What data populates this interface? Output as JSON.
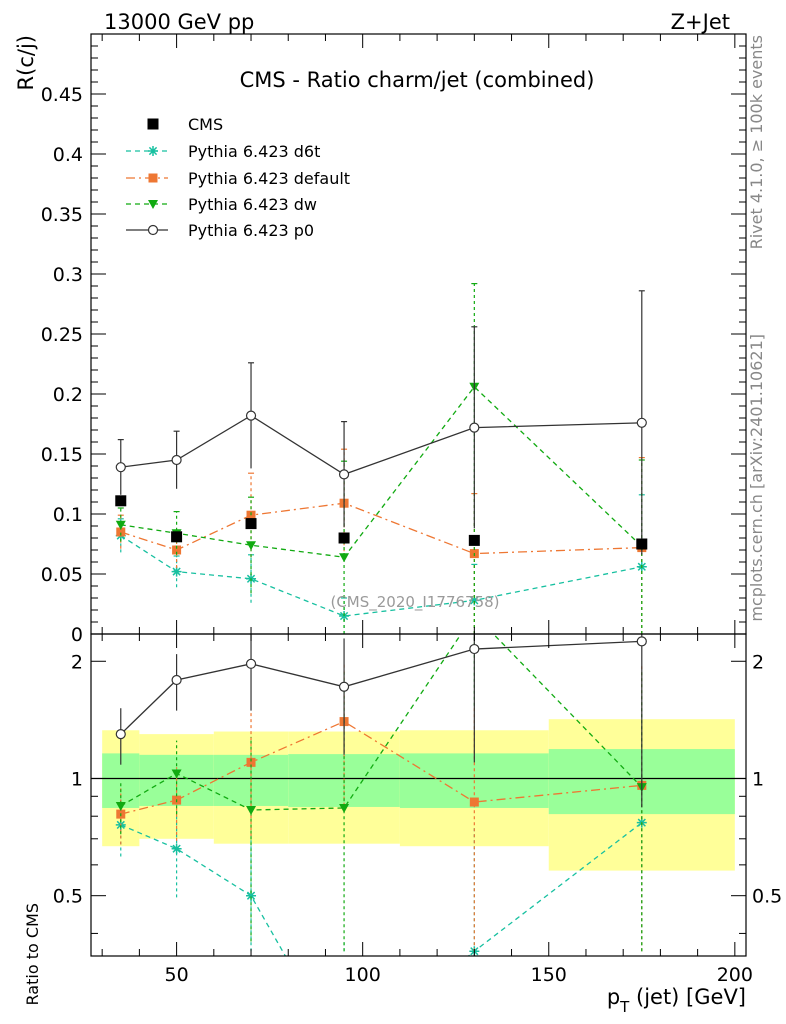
{
  "header": {
    "left": "13000 GeV pp",
    "right": "Z+Jet"
  },
  "side_labels": {
    "rivet": "Rivet 4.1.0, ≥ 100k events",
    "mcplots": "mcplots.cern.ch [arXiv:2401.10621]"
  },
  "chart_data": {
    "type": "scatter",
    "title": "CMS - Ratio charm/jet (combined)",
    "watermark": "(CMS_2020_I1776758)",
    "xlabel": "p_T (jet) [GeV]",
    "xlabel_parts": {
      "main": "p",
      "sub": "T",
      "rest": " (jet) [GeV]"
    },
    "ylabel": "R(c/j)",
    "ratio_ylabel": "Ratio to CMS",
    "xlim": [
      27,
      203
    ],
    "ylim": [
      0,
      0.5
    ],
    "ratio_ylim": [
      0.35,
      2.35
    ],
    "x_ticks": [
      "50",
      "100",
      "150",
      "200"
    ],
    "y_ticks": [
      "0",
      "0.05",
      "0.1",
      "0.15",
      "0.2",
      "0.25",
      "0.3",
      "0.35",
      "0.4",
      "0.45"
    ],
    "ratio_ticks": [
      "0.5",
      "1",
      "2"
    ],
    "bins": [
      [
        30,
        40
      ],
      [
        40,
        60
      ],
      [
        60,
        80
      ],
      [
        80,
        110
      ],
      [
        110,
        150
      ],
      [
        150,
        200
      ]
    ],
    "x": [
      35,
      50,
      70,
      95,
      130,
      175
    ],
    "data": {
      "name": "CMS",
      "values": [
        0.111,
        0.081,
        0.092,
        0.08,
        0.078,
        0.075
      ],
      "band_inner": [
        0.16,
        0.15,
        0.15,
        0.155,
        0.16,
        0.19
      ],
      "band_outer": [
        0.33,
        0.3,
        0.32,
        0.32,
        0.33,
        0.42
      ]
    },
    "series": [
      {
        "name": "Pythia 6.423 d6t",
        "color": "#17c0a0",
        "marker": "star",
        "dash": "5,4",
        "values": [
          0.082,
          0.052,
          0.046,
          0.015,
          0.028,
          0.056
        ],
        "err_lo": [
          0.014,
          0.013,
          0.02,
          0.015,
          0.028,
          0.056
        ],
        "err_hi": [
          0.014,
          0.013,
          0.02,
          0.015,
          0.03,
          0.06
        ],
        "ratio": [
          0.76,
          0.66,
          0.5,
          0.19,
          0.36,
          0.77
        ]
      },
      {
        "name": "Pythia 6.423 default",
        "color": "#ee7733",
        "marker": "square",
        "dash": "9,4,2,4",
        "values": [
          0.085,
          0.07,
          0.099,
          0.109,
          0.067,
          0.072
        ],
        "err_lo": [
          0.014,
          0.015,
          0.035,
          0.045,
          0.067,
          0.072
        ],
        "err_hi": [
          0.014,
          0.015,
          0.035,
          0.045,
          0.05,
          0.075
        ],
        "ratio": [
          0.81,
          0.88,
          1.1,
          1.4,
          0.87,
          0.96
        ]
      },
      {
        "name": "Pythia 6.423 dw",
        "color": "#11aa11",
        "marker": "triangle",
        "dash": "5,4",
        "values": [
          0.091,
          0.084,
          0.074,
          0.064,
          0.206,
          0.073
        ],
        "err_lo": [
          0.014,
          0.018,
          0.04,
          0.064,
          0.206,
          0.073
        ],
        "err_hi": [
          0.014,
          0.018,
          0.04,
          0.08,
          0.086,
          0.072
        ],
        "ratio": [
          0.85,
          1.03,
          0.83,
          0.84,
          2.64,
          0.95
        ]
      },
      {
        "name": "Pythia 6.423 p0",
        "color": "#333333",
        "marker": "circle",
        "dash": "",
        "values": [
          0.139,
          0.145,
          0.182,
          0.133,
          0.172,
          0.176
        ],
        "err_lo": [
          0.023,
          0.024,
          0.044,
          0.044,
          0.084,
          0.11
        ],
        "err_hi": [
          0.023,
          0.024,
          0.044,
          0.044,
          0.084,
          0.11
        ],
        "ratio": [
          1.3,
          1.79,
          1.97,
          1.72,
          2.15,
          2.25
        ]
      }
    ]
  }
}
